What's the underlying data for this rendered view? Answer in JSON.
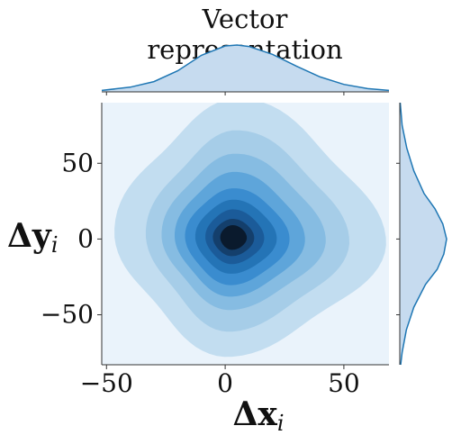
{
  "chart_data": {
    "type": "heatmap",
    "kind": "jointplot-kde",
    "title": "Vector representation",
    "xlabel": "Δx",
    "xlabel_sub": "i",
    "ylabel": "Δy",
    "ylabel_sub": "i",
    "xlim": [
      -52,
      69
    ],
    "ylim": [
      -83,
      90
    ],
    "x_ticks": [
      -50,
      0,
      50
    ],
    "x_tick_labels": [
      "−50",
      "0",
      "50"
    ],
    "y_ticks": [
      -50,
      0,
      50
    ],
    "y_tick_labels": [
      "−50",
      "0",
      "50"
    ],
    "center": [
      3,
      1
    ],
    "contour_levels": [
      {
        "color": "#eaf3fb",
        "rx_left": 52,
        "rx_right": 66,
        "ry_up": 89,
        "ry_down": 84
      },
      {
        "color": "#c2ddf0",
        "rx_left": 46,
        "rx_right": 60,
        "ry_up": 85,
        "ry_down": 73
      },
      {
        "color": "#a6cde8",
        "rx_left": 34,
        "rx_right": 46,
        "ry_up": 66,
        "ry_down": 58
      },
      {
        "color": "#86bce2",
        "rx_left": 28,
        "rx_right": 37,
        "ry_up": 52,
        "ry_down": 45
      },
      {
        "color": "#5ea5da",
        "rx_left": 23,
        "rx_right": 29,
        "ry_up": 41,
        "ry_down": 37
      },
      {
        "color": "#3a8ccf",
        "rx_left": 19,
        "rx_right": 23,
        "ry_up": 31,
        "ry_down": 30
      },
      {
        "color": "#2474b6",
        "rx_left": 15,
        "rx_right": 18,
        "ry_up": 24,
        "ry_down": 23
      },
      {
        "color": "#1b5b99",
        "rx_left": 11,
        "rx_right": 13,
        "ry_up": 18,
        "ry_down": 17
      },
      {
        "color": "#143f6c",
        "rx_left": 8,
        "rx_right": 9,
        "ry_up": 12,
        "ry_down": 12
      },
      {
        "color": "#0a1a2d",
        "rx_left": 5,
        "rx_right": 6,
        "ry_up": 8,
        "ry_down": 8
      }
    ],
    "marginal_x": {
      "x": [
        -52,
        -40,
        -30,
        -20,
        -10,
        0,
        5,
        10,
        20,
        30,
        40,
        50,
        60,
        69
      ],
      "density": [
        0.03,
        0.1,
        0.22,
        0.45,
        0.78,
        0.98,
        1.0,
        0.97,
        0.8,
        0.55,
        0.32,
        0.16,
        0.07,
        0.03
      ]
    },
    "marginal_y": {
      "y": [
        -83,
        -75,
        -60,
        -45,
        -30,
        -20,
        -10,
        0,
        10,
        20,
        30,
        45,
        60,
        75,
        90
      ],
      "density": [
        0.02,
        0.05,
        0.14,
        0.3,
        0.55,
        0.8,
        0.94,
        1.0,
        0.92,
        0.75,
        0.52,
        0.3,
        0.15,
        0.05,
        0.01
      ]
    },
    "colors": {
      "marginal_line": "#1f77b4",
      "marginal_fill": "#c6dbef",
      "axis": "#333333"
    }
  }
}
